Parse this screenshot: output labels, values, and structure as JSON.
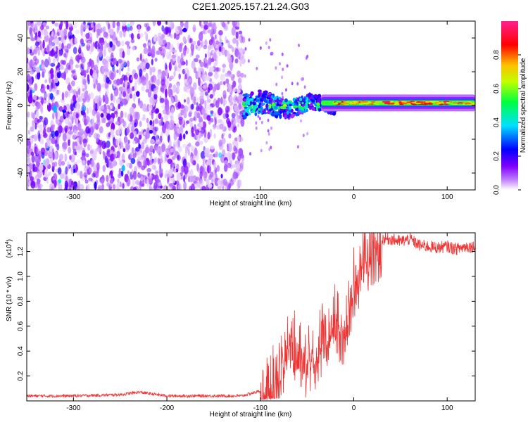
{
  "figure": {
    "title": "C2E1.2025.157.21.24.G03"
  },
  "chart_data": [
    {
      "type": "heatmap",
      "xlabel": "Height of straight line (km)",
      "ylabel": "Frequency (Hz)",
      "xlim": [
        -350,
        130
      ],
      "ylim": [
        -50,
        50
      ],
      "x_ticks": [
        -300,
        -200,
        -100,
        0,
        100
      ],
      "y_ticks": [
        -40,
        -20,
        0,
        20,
        40
      ],
      "colorbar": {
        "label": "Normalized spectral amplitude",
        "range": [
          0,
          1
        ],
        "ticks": [
          0.0,
          0.2,
          0.4,
          0.6,
          0.8
        ],
        "tick_labels": [
          "0.0",
          "0.2",
          "0.4",
          "0.6",
          "0.8"
        ],
        "colors": [
          "#ffffff",
          "#7a00ff",
          "#0000ff",
          "#00ffff",
          "#00ff00",
          "#ffff00",
          "#ff0000",
          "#ff2080"
        ]
      },
      "regions": [
        {
          "x_range": [
            -350,
            -118
          ],
          "freq_range": [
            -50,
            50
          ],
          "amplitude": 0.15,
          "description": "broadband noise"
        },
        {
          "x_range": [
            -118,
            -20
          ],
          "freq_center": 0,
          "freq_halfwidth": 6,
          "amplitude": 0.4,
          "description": "emerging carrier"
        },
        {
          "x_range": [
            -20,
            130
          ],
          "freq_center": 1.5,
          "freq_halfwidth": 2,
          "amplitude": 0.9,
          "description": "carrier line"
        }
      ]
    },
    {
      "type": "line",
      "xlabel": "Height of straight line (km)",
      "ylabel": "SNR (10 * v/v)",
      "y_multiplier": "(x10",
      "y_multiplier_exp": "4",
      "xlim": [
        -350,
        130
      ],
      "ylim": [
        0,
        1.35
      ],
      "x_ticks": [
        -300,
        -200,
        -100,
        0,
        100
      ],
      "y_ticks": [
        0.2,
        0.4,
        0.6,
        0.8,
        1.0,
        1.2
      ],
      "y_tick_labels": [
        "0.2",
        "0.4",
        "0.6",
        "0.8",
        "1.0",
        "1.2"
      ],
      "color": "#ee3333",
      "series": [
        {
          "x": [
            -350,
            -300,
            -250,
            -230,
            -200,
            -150,
            -120,
            -100,
            -90,
            -80,
            -70,
            -60,
            -50,
            -40,
            -30,
            -20,
            -10,
            0,
            10,
            20,
            30,
            40,
            50,
            60,
            70,
            80,
            90,
            100,
            110,
            120,
            130
          ],
          "y": [
            0.04,
            0.04,
            0.05,
            0.07,
            0.04,
            0.04,
            0.04,
            0.08,
            0.12,
            0.3,
            0.55,
            0.5,
            0.35,
            0.45,
            0.6,
            0.7,
            0.6,
            1.0,
            1.15,
            1.25,
            1.3,
            1.3,
            1.28,
            1.3,
            1.25,
            1.24,
            1.23,
            1.24,
            1.22,
            1.24,
            1.24
          ]
        }
      ]
    }
  ]
}
